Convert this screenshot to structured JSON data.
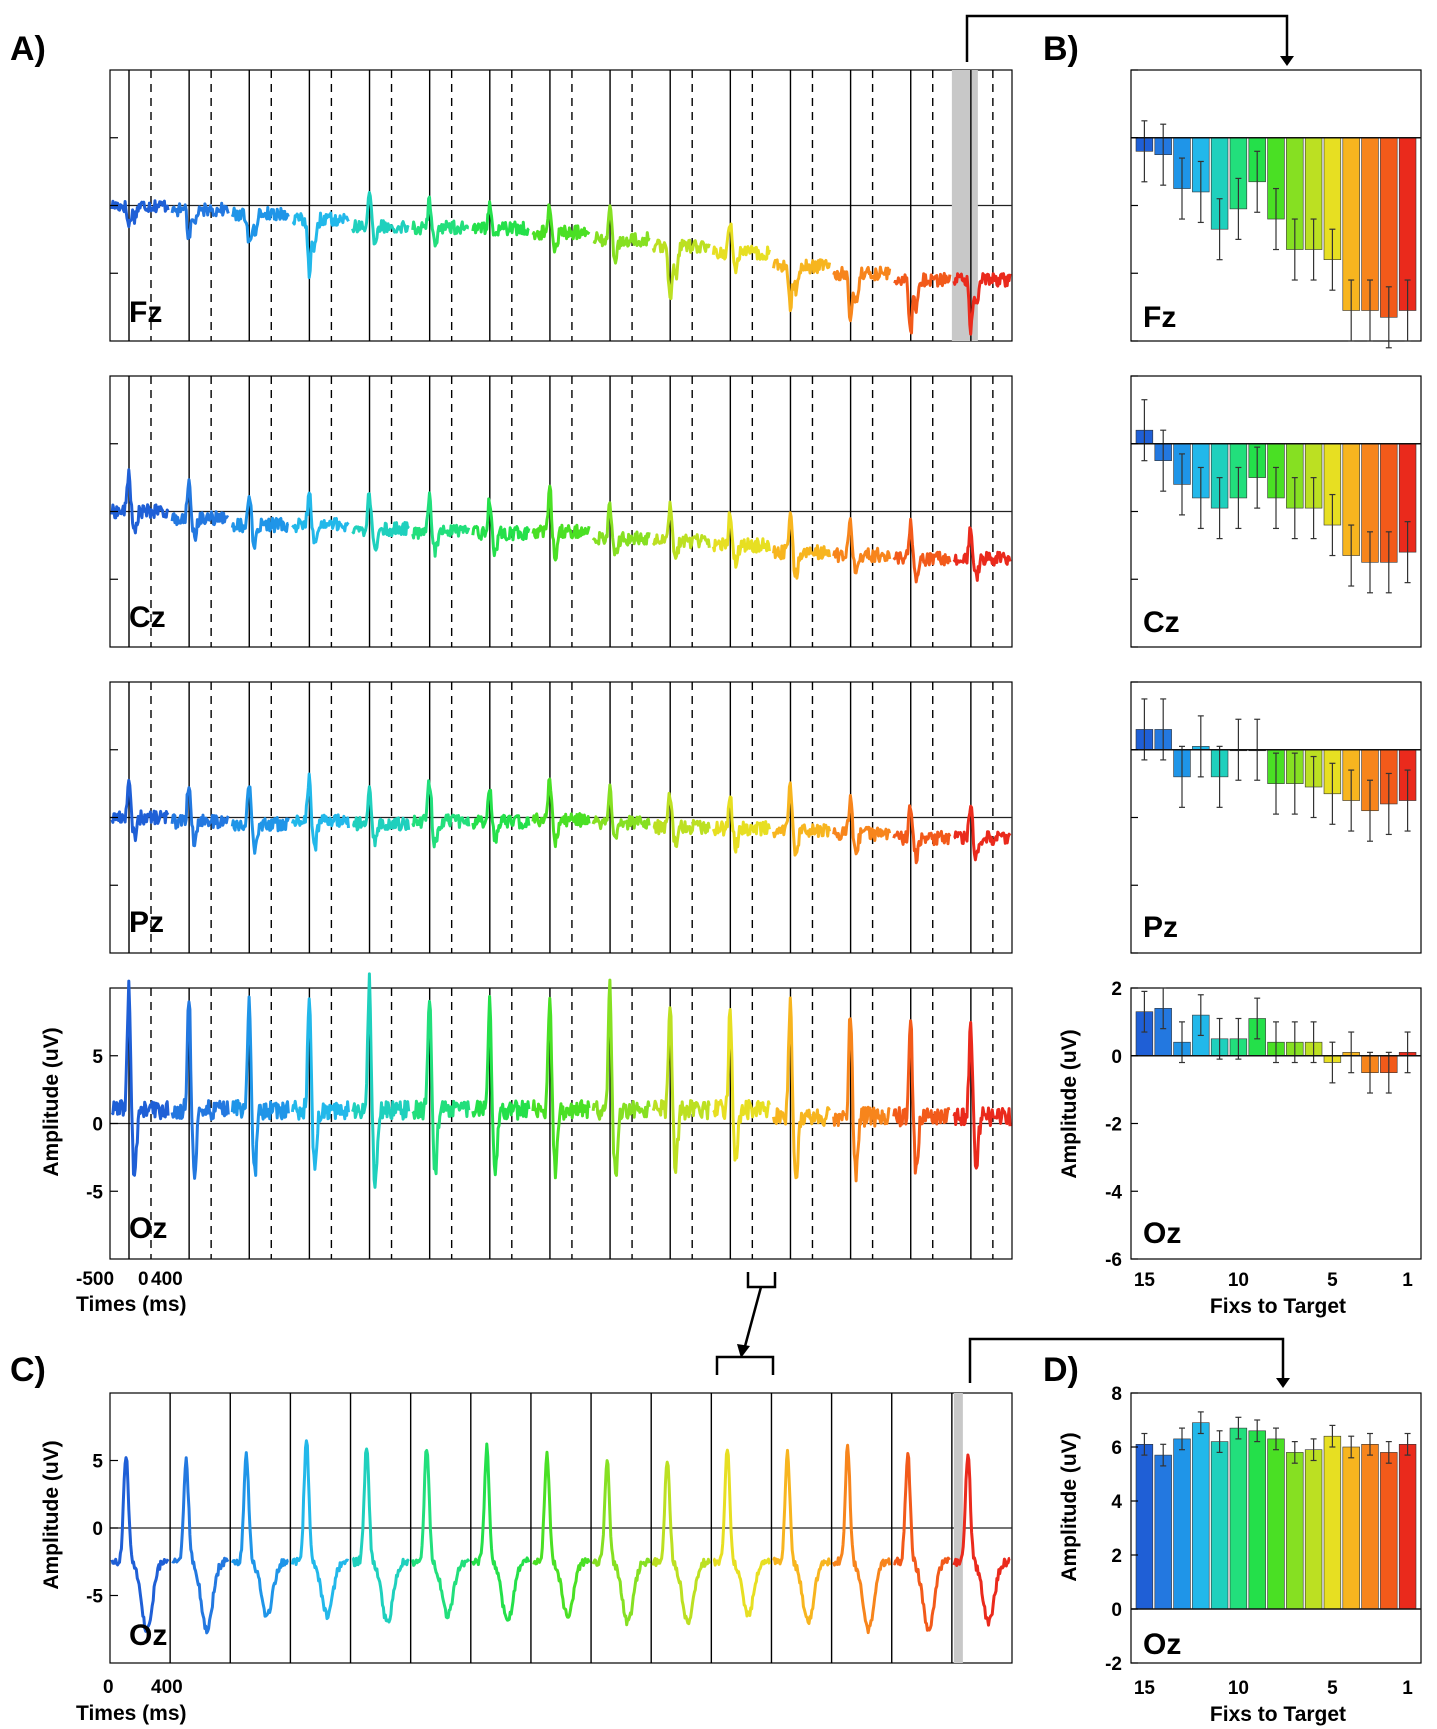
{
  "figure": {
    "panel_letters": [
      "A)",
      "B)",
      "C)",
      "D)"
    ],
    "electrodes": [
      "Fz",
      "Cz",
      "Pz",
      "Oz"
    ]
  },
  "colors": {
    "series": [
      "#1f5fd6",
      "#2378e0",
      "#1f95e8",
      "#22b8ea",
      "#1fd0bd",
      "#22df7c",
      "#24e04a",
      "#4ae024",
      "#86e022",
      "#bce022",
      "#e7df22",
      "#f7b51f",
      "#f7851c",
      "#f25a1a",
      "#ea2a1c",
      "#e0142c"
    ],
    "divider": "#000000",
    "highlight": "#c8c8c8"
  },
  "chart_data": [
    {
      "id": "A",
      "type": "line",
      "panel": "A)",
      "description_none": "",
      "segments": 15,
      "segment_labels": [
        15,
        14,
        13,
        12,
        11,
        10,
        9,
        8,
        7,
        6,
        5,
        4,
        3,
        2,
        1
      ],
      "segment_time_ms": [
        -500,
        400
      ],
      "xlabel": "Times (ms)",
      "xticks": [
        "-500",
        "0",
        "400"
      ],
      "ylabel": "Amplitude (uV)",
      "yticks": [
        -5,
        0,
        5
      ],
      "ylim": [
        -10,
        10
      ],
      "rows": [
        {
          "electrode": "Fz",
          "peak": [
            -1.5,
            -2.0,
            -2.5,
            -4.0,
            2.5,
            2.0,
            1.5,
            2.0,
            2.5,
            -4.0,
            2.5,
            -3.0,
            -3.5,
            -4.0,
            -3.5
          ],
          "trend": [
            0,
            -0.3,
            -0.6,
            -1.0,
            -1.5,
            -1.6,
            -1.7,
            -2.0,
            -2.5,
            -3.0,
            -3.5,
            -4.5,
            -5.0,
            -5.5,
            -5.5
          ]
        },
        {
          "electrode": "Cz",
          "peak": [
            3.0,
            2.5,
            2.5,
            2.5,
            2.5,
            2.5,
            2.5,
            3.5,
            2.5,
            2.5,
            2.5,
            3.0,
            2.5,
            2.5,
            2.5
          ],
          "trend": [
            0,
            -0.5,
            -1.0,
            -1.0,
            -1.3,
            -1.5,
            -1.6,
            -1.5,
            -2.0,
            -2.2,
            -2.5,
            -3.0,
            -3.2,
            -3.5,
            -3.5
          ]
        },
        {
          "electrode": "Pz",
          "peak": [
            2.5,
            3.0,
            3.0,
            3.5,
            2.5,
            3.0,
            2.5,
            3.0,
            2.5,
            2.5,
            2.5,
            3.5,
            2.5,
            2.5,
            2.5
          ],
          "trend": [
            0,
            -0.3,
            -0.5,
            -0.3,
            -0.5,
            -0.3,
            -0.3,
            -0.2,
            -0.4,
            -0.7,
            -0.8,
            -1.0,
            -1.2,
            -1.5,
            -1.5
          ]
        },
        {
          "electrode": "Oz",
          "peak": [
            9.0,
            8.5,
            8.5,
            8.0,
            9.5,
            8.5,
            8.5,
            8.0,
            9.0,
            8.0,
            7.5,
            8.5,
            8.0,
            7.5,
            7.0
          ],
          "trend": [
            0,
            0,
            0,
            0,
            0,
            0,
            0,
            0,
            0,
            0,
            0,
            -0.5,
            -0.5,
            -0.5,
            -0.5
          ]
        }
      ],
      "highlight_segment": 15
    },
    {
      "id": "B",
      "type": "bar",
      "panel": "B)",
      "categories": [
        15,
        14,
        13,
        12,
        11,
        10,
        9,
        8,
        7,
        6,
        5,
        4,
        3,
        2,
        1
      ],
      "xlabel": "Fixs to Target",
      "xticks": [
        15,
        10,
        5,
        1
      ],
      "ylabel": "Amplitude (uV)",
      "yticks": [
        -6,
        -4,
        -2,
        0,
        2
      ],
      "ylim": [
        -6,
        2
      ],
      "series": [
        {
          "electrode": "Fz",
          "values": [
            -0.4,
            -0.5,
            -1.5,
            -1.6,
            -2.7,
            -2.1,
            -1.3,
            -2.4,
            -3.3,
            -3.3,
            -3.6,
            -5.1,
            -5.1,
            -5.3,
            -5.1
          ],
          "errors": [
            0.9,
            0.9,
            0.9,
            0.9,
            0.9,
            0.9,
            0.9,
            0.9,
            0.9,
            0.9,
            0.9,
            0.9,
            0.9,
            0.9,
            0.9
          ]
        },
        {
          "electrode": "Cz",
          "values": [
            0.4,
            -0.5,
            -1.2,
            -1.6,
            -1.9,
            -1.6,
            -1.0,
            -1.6,
            -1.9,
            -1.9,
            -2.4,
            -3.3,
            -3.5,
            -3.5,
            -3.2
          ],
          "errors": [
            0.9,
            0.9,
            0.9,
            0.9,
            0.9,
            0.9,
            0.9,
            0.9,
            0.9,
            0.9,
            0.9,
            0.9,
            0.9,
            0.9,
            0.9
          ]
        },
        {
          "electrode": "Pz",
          "values": [
            0.6,
            0.6,
            -0.8,
            0.1,
            -0.8,
            0.0,
            0.0,
            -1.0,
            -1.0,
            -1.1,
            -1.3,
            -1.5,
            -1.8,
            -1.6,
            -1.5
          ],
          "errors": [
            0.9,
            0.9,
            0.9,
            0.9,
            0.9,
            0.9,
            0.9,
            0.9,
            0.9,
            0.9,
            0.9,
            0.9,
            0.9,
            0.9,
            0.9
          ]
        },
        {
          "electrode": "Oz",
          "values": [
            1.3,
            1.4,
            0.4,
            1.2,
            0.5,
            0.5,
            1.1,
            0.4,
            0.4,
            0.4,
            -0.2,
            0.1,
            -0.5,
            -0.5,
            0.1
          ],
          "errors": [
            0.6,
            0.6,
            0.6,
            0.6,
            0.6,
            0.6,
            0.6,
            0.6,
            0.6,
            0.6,
            0.6,
            0.6,
            0.6,
            0.6,
            0.6
          ]
        }
      ]
    },
    {
      "id": "C",
      "type": "line",
      "panel": "C)",
      "electrode": "Oz",
      "segments": 15,
      "segment_time_ms": [
        0,
        400
      ],
      "xlabel": "Times (ms)",
      "xticks": [
        "0",
        "400"
      ],
      "ylabel": "Amplitude (uV)",
      "yticks": [
        -5,
        0,
        5
      ],
      "ylim": [
        -10,
        10
      ],
      "peak": [
        8.0,
        7.5,
        8.0,
        9.0,
        8.5,
        8.5,
        8.5,
        8.0,
        7.5,
        7.5,
        8.5,
        8.0,
        8.5,
        8.0,
        8.0
      ],
      "trough": [
        -5.0,
        -5.0,
        -4.0,
        -4.0,
        -4.5,
        -4.0,
        -4.5,
        -4.0,
        -4.5,
        -4.5,
        -4.0,
        -4.5,
        -5.0,
        -5.0,
        -4.5
      ],
      "highlight_segment": 15
    },
    {
      "id": "D",
      "type": "bar",
      "panel": "D)",
      "electrode": "Oz",
      "categories": [
        15,
        14,
        13,
        12,
        11,
        10,
        9,
        8,
        7,
        6,
        5,
        4,
        3,
        2,
        1
      ],
      "xlabel": "Fixs to Target",
      "xticks": [
        15,
        10,
        5,
        1
      ],
      "ylabel": "Amplitude (uV)",
      "yticks": [
        -2,
        0,
        2,
        4,
        6,
        8
      ],
      "ylim": [
        -2,
        8
      ],
      "values": [
        6.1,
        5.7,
        6.3,
        6.9,
        6.2,
        6.7,
        6.6,
        6.3,
        5.8,
        5.9,
        6.4,
        6.0,
        6.1,
        5.8,
        6.1
      ],
      "errors": [
        0.4,
        0.4,
        0.4,
        0.4,
        0.4,
        0.4,
        0.4,
        0.4,
        0.4,
        0.4,
        0.4,
        0.4,
        0.4,
        0.4,
        0.4
      ]
    }
  ]
}
